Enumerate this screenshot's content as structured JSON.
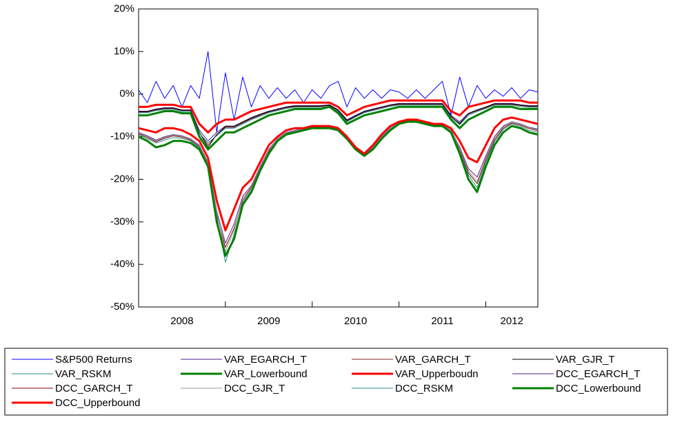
{
  "chart_data": {
    "type": "line",
    "x": [
      2008.0,
      2008.1,
      2008.2,
      2008.3,
      2008.4,
      2008.5,
      2008.6,
      2008.7,
      2008.8,
      2008.9,
      2009.0,
      2009.1,
      2009.2,
      2009.3,
      2009.4,
      2009.5,
      2009.6,
      2009.7,
      2009.8,
      2009.9,
      2010.0,
      2010.1,
      2010.2,
      2010.3,
      2010.4,
      2010.5,
      2010.6,
      2010.7,
      2010.8,
      2010.9,
      2011.0,
      2011.1,
      2011.2,
      2011.3,
      2011.4,
      2011.5,
      2011.6,
      2011.7,
      2011.8,
      2011.9,
      2012.0,
      2012.1,
      2012.2,
      2012.3,
      2012.4,
      2012.5,
      2012.6
    ],
    "xlim": [
      2008.0,
      2012.6
    ],
    "xticks": [
      {
        "value": 2008.5,
        "label": "2008"
      },
      {
        "value": 2009.5,
        "label": "2009"
      },
      {
        "value": 2010.5,
        "label": "2010"
      },
      {
        "value": 2011.5,
        "label": "2011"
      },
      {
        "value": 2012.3,
        "label": "2012"
      }
    ],
    "xtick_marks": [
      2009,
      2010,
      2011,
      2012
    ],
    "ylim": [
      -50,
      20
    ],
    "yticks": [
      {
        "value": -50,
        "label": "-50%"
      },
      {
        "value": -40,
        "label": "-40%"
      },
      {
        "value": -30,
        "label": "-30%"
      },
      {
        "value": -20,
        "label": "-20%"
      },
      {
        "value": -10,
        "label": "-10%"
      },
      {
        "value": 0,
        "label": "0%"
      },
      {
        "value": 10,
        "label": "10%"
      },
      {
        "value": 20,
        "label": "20%"
      }
    ],
    "series": [
      {
        "name": "S&P500 Returns",
        "color": "#0000ff",
        "width": 1,
        "values": [
          1,
          -2,
          3,
          -1,
          2,
          -3,
          2,
          -1,
          10,
          -9,
          5,
          -6,
          4,
          -3,
          2,
          -1,
          1.5,
          -1,
          1,
          -2,
          1,
          -1,
          2,
          3,
          -3,
          1.5,
          -1,
          1,
          -1,
          1,
          0.5,
          -1,
          1,
          -1,
          1,
          3,
          -5,
          4,
          -3,
          2,
          -1,
          1,
          -0.5,
          1.5,
          -1,
          1,
          0.5
        ]
      },
      {
        "name": "VAR_EGARCH_T",
        "color": "#4b1e8c",
        "width": 1,
        "values": [
          -4,
          -4,
          -3.5,
          -3.2,
          -3.2,
          -3.7,
          -3.7,
          -8.5,
          -11,
          -9,
          -7.5,
          -7.5,
          -6.5,
          -5.5,
          -4.7,
          -4,
          -3.5,
          -3,
          -2.7,
          -2.7,
          -2.7,
          -2.7,
          -2.5,
          -3.7,
          -6,
          -5,
          -4,
          -3.5,
          -3,
          -2.5,
          -2.2,
          -2.2,
          -2.2,
          -2.2,
          -2.2,
          -2.2,
          -5,
          -6.5,
          -4.5,
          -3.7,
          -3,
          -2.2,
          -2.2,
          -2.2,
          -2.5,
          -2.7,
          -2.7
        ]
      },
      {
        "name": "VAR_GARCH_T",
        "color": "#8b2020",
        "width": 1,
        "values": [
          -4.2,
          -4.2,
          -3.7,
          -3.4,
          -3.4,
          -3.9,
          -3.9,
          -9,
          -12,
          -9.5,
          -7.8,
          -7.8,
          -6.8,
          -5.8,
          -5,
          -4.2,
          -3.7,
          -3.2,
          -2.9,
          -2.9,
          -2.9,
          -2.9,
          -2.7,
          -3.9,
          -6.3,
          -5.2,
          -4.2,
          -3.7,
          -3.2,
          -2.7,
          -2.4,
          -2.4,
          -2.4,
          -2.4,
          -2.4,
          -2.4,
          -5.3,
          -6.8,
          -4.7,
          -3.9,
          -3.2,
          -2.4,
          -2.4,
          -2.4,
          -2.7,
          -2.9,
          -2.9
        ]
      },
      {
        "name": "VAR_GJR_T",
        "color": "#000000",
        "width": 1,
        "values": [
          -4.1,
          -4.1,
          -3.6,
          -3.3,
          -3.3,
          -3.8,
          -3.8,
          -9,
          -12.5,
          -9.5,
          -7.6,
          -7.6,
          -6.6,
          -5.6,
          -4.8,
          -4.1,
          -3.6,
          -3.1,
          -2.8,
          -2.8,
          -2.8,
          -2.8,
          -2.6,
          -3.8,
          -6.2,
          -5.1,
          -4.1,
          -3.6,
          -3.1,
          -2.6,
          -2.3,
          -2.3,
          -2.3,
          -2.3,
          -2.3,
          -2.3,
          -5.2,
          -7,
          -4.6,
          -3.8,
          -3.1,
          -2.3,
          -2.3,
          -2.3,
          -2.6,
          -2.8,
          -2.8
        ]
      },
      {
        "name": "VAR_RSKM",
        "color": "#1a8a8a",
        "width": 1,
        "values": [
          -4.4,
          -4.4,
          -3.9,
          -3.6,
          -3.6,
          -4.1,
          -4.1,
          -9.2,
          -11.5,
          -9.8,
          -8,
          -8,
          -7,
          -6,
          -5.2,
          -4.4,
          -3.9,
          -3.4,
          -3.1,
          -3.1,
          -3.1,
          -3.1,
          -2.9,
          -4.1,
          -6.5,
          -5.4,
          -4.4,
          -3.9,
          -3.4,
          -2.9,
          -2.6,
          -2.6,
          -2.6,
          -2.6,
          -2.6,
          -2.6,
          -5.5,
          -7.2,
          -5,
          -4.1,
          -3.4,
          -2.6,
          -2.6,
          -2.6,
          -2.9,
          -3.1,
          -3.1
        ]
      },
      {
        "name": "VAR_Lowerbound",
        "color": "#008000",
        "width": 3,
        "values": [
          -5,
          -5,
          -4.5,
          -4,
          -4,
          -4.5,
          -4.5,
          -10,
          -13,
          -11,
          -9,
          -9,
          -8,
          -7,
          -6,
          -5,
          -4.5,
          -4,
          -3.5,
          -3.5,
          -3.5,
          -3.5,
          -3,
          -4.5,
          -7,
          -6,
          -5,
          -4.5,
          -4,
          -3.5,
          -3,
          -3,
          -3,
          -3,
          -3,
          -3,
          -6,
          -8,
          -6,
          -5,
          -4,
          -3,
          -3,
          -3,
          -3.5,
          -3.5,
          -3.5
        ]
      },
      {
        "name": "VAR_Upperboudn",
        "color": "#ff0000",
        "width": 3,
        "values": [
          -3,
          -3,
          -2.5,
          -2.5,
          -2.5,
          -3,
          -3,
          -7,
          -9,
          -7,
          -6,
          -6,
          -5,
          -4,
          -3.5,
          -3,
          -2.5,
          -2,
          -2,
          -2,
          -2,
          -2,
          -2,
          -3,
          -5,
          -4,
          -3,
          -2.5,
          -2,
          -1.5,
          -1.5,
          -1.5,
          -1.5,
          -1.5,
          -1.5,
          -1.5,
          -4,
          -5,
          -3,
          -2.5,
          -2,
          -1.5,
          -1.5,
          -1.5,
          -1.5,
          -2,
          -2
        ]
      },
      {
        "name": "DCC_EGARCH_T",
        "color": "#4b1e8c",
        "width": 1,
        "values": [
          -9,
          -9.8,
          -10.8,
          -10,
          -9.5,
          -9.8,
          -10.5,
          -12,
          -16,
          -27.5,
          -35,
          -30.5,
          -24,
          -21.5,
          -17,
          -13,
          -10.5,
          -9,
          -8.5,
          -8.2,
          -7.8,
          -7.8,
          -7.8,
          -8.2,
          -10.2,
          -12.8,
          -14.2,
          -12.5,
          -10,
          -8,
          -6.8,
          -6.2,
          -6.2,
          -6.8,
          -7.2,
          -7.2,
          -8.5,
          -12.5,
          -17.5,
          -19.5,
          -14.5,
          -10,
          -7.5,
          -6.5,
          -7,
          -7.8,
          -8.2
        ]
      },
      {
        "name": "DCC_GARCH_T",
        "color": "#800000",
        "width": 1,
        "values": [
          -9.3,
          -10.2,
          -11.2,
          -10.4,
          -9.8,
          -10.1,
          -10.8,
          -12.3,
          -16.5,
          -28.5,
          -36,
          -31.5,
          -25,
          -22,
          -17.5,
          -13.5,
          -10.8,
          -9.2,
          -8.7,
          -8.4,
          -8,
          -8,
          -8,
          -8.4,
          -10.4,
          -13,
          -14.6,
          -12.8,
          -10.3,
          -8.2,
          -7,
          -6.4,
          -6.4,
          -7,
          -7.4,
          -7.4,
          -8.8,
          -13,
          -18.5,
          -21,
          -15.5,
          -10.8,
          -8,
          -6.8,
          -7.3,
          -8.1,
          -8.6
        ]
      },
      {
        "name": "DCC_GJR_T",
        "color": "#999999",
        "width": 1,
        "values": [
          -9.1,
          -10,
          -11,
          -10.2,
          -9.6,
          -9.9,
          -10.6,
          -12.1,
          -16.2,
          -28,
          -37,
          -32,
          -24.5,
          -21.8,
          -17.2,
          -13.2,
          -10.6,
          -9.1,
          -8.6,
          -8.3,
          -7.9,
          -7.9,
          -7.9,
          -8.3,
          -10.3,
          -12.9,
          -14.4,
          -12.6,
          -10.1,
          -8.1,
          -6.9,
          -6.3,
          -6.3,
          -6.9,
          -7.3,
          -7.3,
          -8.6,
          -12.8,
          -18,
          -20.5,
          -15,
          -10.4,
          -7.7,
          -6.6,
          -7.1,
          -7.9,
          -8.4
        ]
      },
      {
        "name": "DCC_RSKM",
        "color": "#2e8b8b",
        "width": 1,
        "values": [
          -9.5,
          -10.5,
          -11.5,
          -10.8,
          -10.2,
          -10.4,
          -11,
          -12.6,
          -16.8,
          -29,
          -39.5,
          -33,
          -25.5,
          -22.5,
          -17.8,
          -13.8,
          -11,
          -9.3,
          -8.8,
          -8.4,
          -8,
          -8,
          -8,
          -8.4,
          -10.5,
          -13,
          -14.5,
          -12.9,
          -10.4,
          -8.3,
          -7,
          -6.4,
          -6.4,
          -7,
          -7.4,
          -7.4,
          -8.8,
          -13.5,
          -19,
          -22,
          -16,
          -11.2,
          -8.3,
          -7,
          -7.6,
          -8.5,
          -9
        ]
      },
      {
        "name": "DCC_Lowerbound",
        "color": "#008000",
        "width": 3,
        "values": [
          -10,
          -11,
          -12.5,
          -12,
          -11,
          -11,
          -11.5,
          -13,
          -17,
          -30,
          -38,
          -34,
          -26,
          -23,
          -18,
          -14,
          -11,
          -9.5,
          -9,
          -8.5,
          -8,
          -8,
          -8,
          -8.5,
          -10.5,
          -13,
          -14.5,
          -13,
          -10.5,
          -8.5,
          -7,
          -6.5,
          -6.5,
          -7,
          -7.5,
          -7.5,
          -9,
          -14,
          -20,
          -23,
          -17,
          -12,
          -9,
          -7.5,
          -8,
          -9,
          -9.5
        ]
      },
      {
        "name": "DCC_Upperbound",
        "color": "#ff0000",
        "width": 3,
        "values": [
          -8,
          -8.5,
          -9,
          -8,
          -8,
          -8.5,
          -9.5,
          -11,
          -15,
          -25,
          -32,
          -27,
          -22,
          -20,
          -16,
          -12,
          -10,
          -8.5,
          -8,
          -8,
          -7.5,
          -7.5,
          -7.5,
          -8,
          -10,
          -12.5,
          -14,
          -12,
          -9.5,
          -7.5,
          -6.5,
          -6,
          -6,
          -6.5,
          -7,
          -7,
          -8,
          -11,
          -15,
          -16,
          -12,
          -8,
          -6,
          -5.5,
          -6,
          -6.5,
          -7
        ]
      }
    ]
  }
}
